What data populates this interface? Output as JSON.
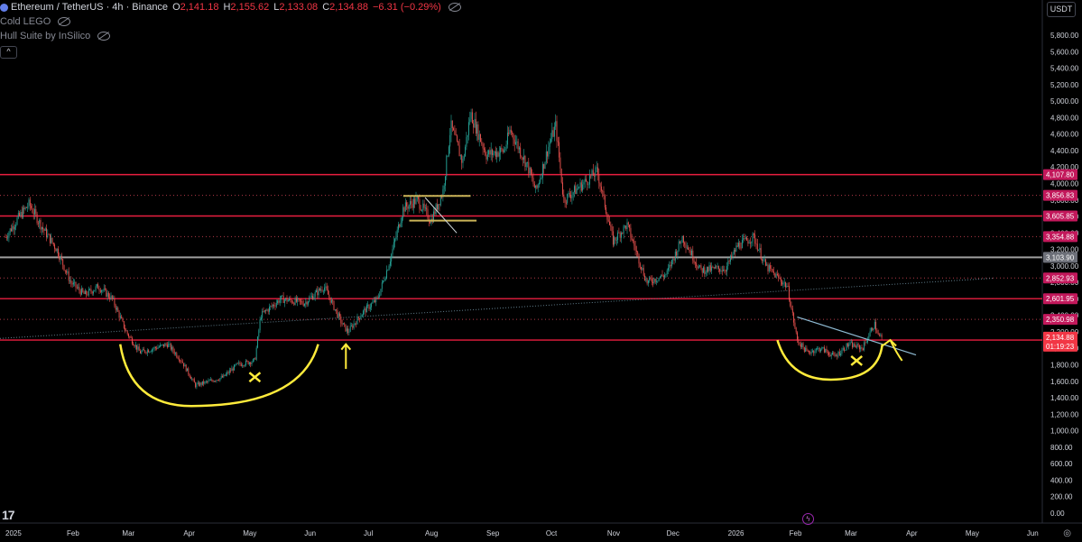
{
  "header": {
    "symbol": "Ethereum / TetherUS · 4h · Binance",
    "open_label": "O",
    "open": "2,141.18",
    "high_label": "H",
    "high": "2,155.62",
    "low_label": "L",
    "low": "2,133.08",
    "close_label": "C",
    "close": "2,134.88",
    "change": "−6.31 (−0.29%)",
    "indicators": [
      "Cold LEGO",
      "Hull Suite by InSilico"
    ],
    "collapse_glyph": "^"
  },
  "currency": "USDT",
  "logo": "17",
  "colors": {
    "background": "#000000",
    "up": "#26a69a",
    "down": "#ef5350",
    "level": "#e91e3f",
    "level_gray": "#9e9e9e",
    "drawing": "#ffeb3b",
    "trendline": "#8fbcd4"
  },
  "chart_data": {
    "type": "candlestick",
    "ylim": [
      -100,
      6100
    ],
    "y_ticks": [
      "5,800.00",
      "5,600.00",
      "5,400.00",
      "5,200.00",
      "5,000.00",
      "4,800.00",
      "4,600.00",
      "4,400.00",
      "4,200.00",
      "4,000.00",
      "3,800.00",
      "3,600.00",
      "3,400.00",
      "3,200.00",
      "3,000.00",
      "2,800.00",
      "2,600.00",
      "2,400.00",
      "2,200.00",
      "2,000.00",
      "1,800.00",
      "1,600.00",
      "1,400.00",
      "1,200.00",
      "1,000.00",
      "800.00",
      "600.00",
      "400.00",
      "200.00",
      "0.00"
    ],
    "y_tick_values": [
      5800,
      5600,
      5400,
      5200,
      5000,
      4800,
      4600,
      4400,
      4200,
      4000,
      3800,
      3600,
      3400,
      3200,
      3000,
      2800,
      2600,
      2400,
      2200,
      2000,
      1800,
      1600,
      1400,
      1200,
      1000,
      800,
      600,
      400,
      200,
      0
    ],
    "x_ticks": [
      "2025",
      "Feb",
      "Mar",
      "Apr",
      "May",
      "Jun",
      "Jul",
      "Aug",
      "Sep",
      "Oct",
      "Nov",
      "Dec",
      "2026",
      "Feb",
      "Mar",
      "Apr",
      "May",
      "Jun"
    ],
    "x_tick_dates": [
      "2025-01-01",
      "2025-02-01",
      "2025-03-01",
      "2025-04-01",
      "2025-05-01",
      "2025-06-01",
      "2025-07-01",
      "2025-08-01",
      "2025-09-01",
      "2025-10-01",
      "2025-11-01",
      "2025-12-01",
      "2026-01-01",
      "2026-02-01",
      "2026-03-01",
      "2026-04-01",
      "2026-05-01",
      "2026-06-01"
    ],
    "price_path": [
      [
        "2025-01-01",
        3350
      ],
      [
        "2025-01-08",
        3600
      ],
      [
        "2025-01-13",
        3750
      ],
      [
        "2025-01-20",
        3450
      ],
      [
        "2025-01-27",
        3200
      ],
      [
        "2025-02-03",
        2800
      ],
      [
        "2025-02-10",
        2650
      ],
      [
        "2025-02-17",
        2750
      ],
      [
        "2025-02-24",
        2600
      ],
      [
        "2025-03-03",
        2200
      ],
      [
        "2025-03-10",
        1950
      ],
      [
        "2025-03-17",
        2000
      ],
      [
        "2025-03-24",
        2050
      ],
      [
        "2025-03-31",
        1850
      ],
      [
        "2025-04-07",
        1550
      ],
      [
        "2025-04-14",
        1600
      ],
      [
        "2025-04-21",
        1650
      ],
      [
        "2025-04-28",
        1800
      ],
      [
        "2025-05-07",
        1850
      ],
      [
        "2025-05-10",
        2400
      ],
      [
        "2025-05-20",
        2600
      ],
      [
        "2025-06-01",
        2550
      ],
      [
        "2025-06-11",
        2750
      ],
      [
        "2025-06-20",
        2300
      ],
      [
        "2025-06-23",
        2200
      ],
      [
        "2025-07-01",
        2450
      ],
      [
        "2025-07-08",
        2600
      ],
      [
        "2025-07-14",
        3050
      ],
      [
        "2025-07-21",
        3700
      ],
      [
        "2025-07-28",
        3800
      ],
      [
        "2025-08-04",
        3550
      ],
      [
        "2025-08-10",
        3900
      ],
      [
        "2025-08-14",
        4700
      ],
      [
        "2025-08-20",
        4250
      ],
      [
        "2025-08-24",
        4850
      ],
      [
        "2025-09-01",
        4350
      ],
      [
        "2025-09-10",
        4400
      ],
      [
        "2025-09-13",
        4650
      ],
      [
        "2025-09-22",
        4200
      ],
      [
        "2025-09-26",
        3900
      ],
      [
        "2025-10-03",
        4500
      ],
      [
        "2025-10-06",
        4700
      ],
      [
        "2025-10-10",
        3800
      ],
      [
        "2025-10-20",
        4000
      ],
      [
        "2025-10-27",
        4150
      ],
      [
        "2025-11-04",
        3300
      ],
      [
        "2025-11-11",
        3500
      ],
      [
        "2025-11-21",
        2800
      ],
      [
        "2025-12-01",
        2900
      ],
      [
        "2025-12-09",
        3350
      ],
      [
        "2025-12-18",
        2950
      ],
      [
        "2025-12-31",
        2970
      ],
      [
        "2026-01-06",
        3250
      ],
      [
        "2026-01-14",
        3350
      ],
      [
        "2026-01-20",
        3000
      ],
      [
        "2026-01-31",
        2750
      ],
      [
        "2026-02-05",
        2100
      ],
      [
        "2026-02-10",
        1950
      ],
      [
        "2026-02-17",
        2000
      ],
      [
        "2026-02-24",
        1900
      ],
      [
        "2026-03-03",
        2050
      ],
      [
        "2026-03-10",
        2000
      ],
      [
        "2026-03-16",
        2300
      ],
      [
        "2026-03-18",
        2150
      ],
      [
        "2026-03-20",
        2134.88
      ]
    ],
    "horizontal_levels": [
      {
        "value": 4107.8,
        "label": "4,107.80",
        "style": "solid"
      },
      {
        "value": 3856.83,
        "label": "3,856.83",
        "style": "dotted"
      },
      {
        "value": 3605.85,
        "label": "3,605.85",
        "style": "solid"
      },
      {
        "value": 3354.88,
        "label": "3,354.88",
        "style": "dotted"
      },
      {
        "value": 3103.9,
        "label": "3,103.90",
        "style": "gray"
      },
      {
        "value": 2852.93,
        "label": "2,852.93",
        "style": "dotted"
      },
      {
        "value": 2601.95,
        "label": "2,601.95",
        "style": "solid"
      },
      {
        "value": 2350.98,
        "label": "2,350.98",
        "style": "dotted"
      },
      {
        "value": 2100.0,
        "label": "2,100.00",
        "style": "solid"
      }
    ],
    "current_price": {
      "value": 2134.88,
      "label": "2,134.88",
      "countdown": "01:19:23"
    },
    "grid": false
  }
}
